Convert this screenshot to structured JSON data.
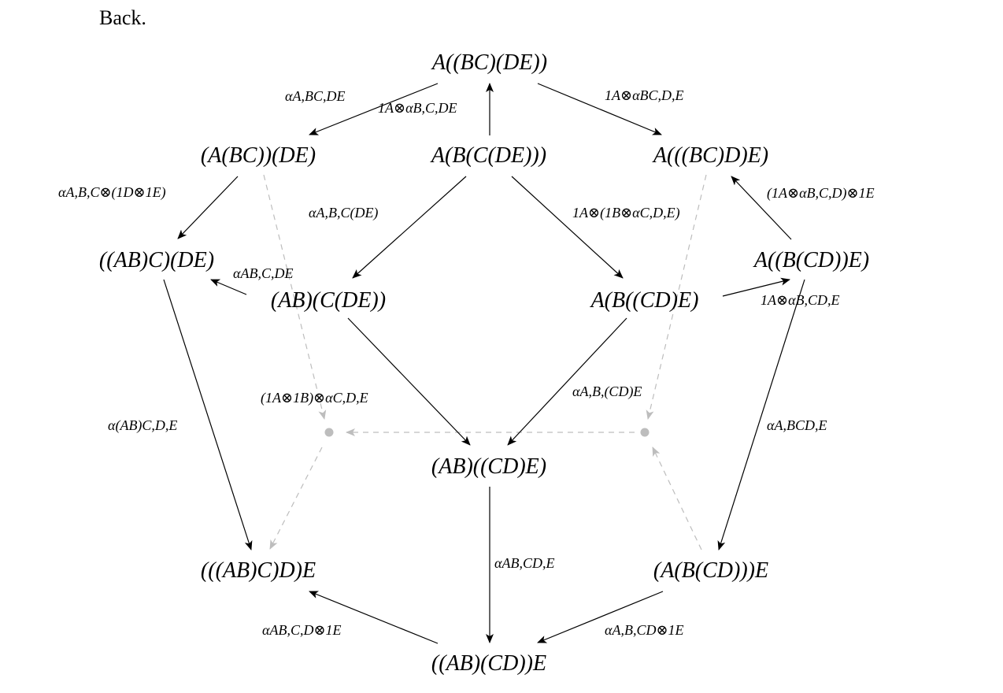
{
  "header": {
    "back_label": "Back."
  },
  "objects": {
    "top": "A((BC)(DE))",
    "upper_left": "(A(BC))(DE)",
    "upper_center": "A(B(C(DE)))",
    "upper_right": "A(((BC)D)E)",
    "mid_far_left": "((AB)C)(DE)",
    "mid_left": "(AB)(C(DE))",
    "mid_right": "A(B((CD)E)",
    "mid_far_right": "A((B(CD))E)",
    "center": "(AB)((CD)E)",
    "lower_left": "(((AB)C)D)E",
    "lower_right": "(A(B(CD)))E",
    "bottom": "((AB)(CD))E"
  },
  "labels": {
    "alpha_A_BC_DE": "αA,BC,DE",
    "id_A_alpha_B_C_DE": "1A⊗αB,C,DE",
    "id_A_alpha_BC_D_E": "1A⊗αBC,D,E",
    "alpha_A_B_C_ids": "αA,B,C⊗(1D⊗1E)",
    "alpha_A_B_CDE": "αA,B,C(DE)",
    "id_A_id_B_alpha_C_D_E": "1A⊗(1B⊗αC,D,E)",
    "id_A_alpha_B_C_D_id_E": "(1A⊗αB,C,D)⊗1E",
    "alpha_AB_C_DE": "αAB,C,DE",
    "id_A_alpha_B_CD_E": "1A⊗αB,CD,E",
    "ids_alpha_C_D_E": "(1A⊗1B)⊗αC,D,E",
    "alpha_A_B_CD_E": "αA,B,(CD)E",
    "alpha_AB_C_D_E": "α(AB)C,D,E",
    "alpha_A_BCD_E": "αA,BCD,E",
    "alpha_AB_CD_E": "αAB,CD,E",
    "alpha_AB_C_D_id_E": "αAB,C,D⊗1E",
    "alpha_A_B_CD_id_E": "αA,B,CD⊗1E"
  },
  "colors": {
    "solid_arrow": "#000000",
    "hidden_arrow": "#bdbdbd"
  }
}
